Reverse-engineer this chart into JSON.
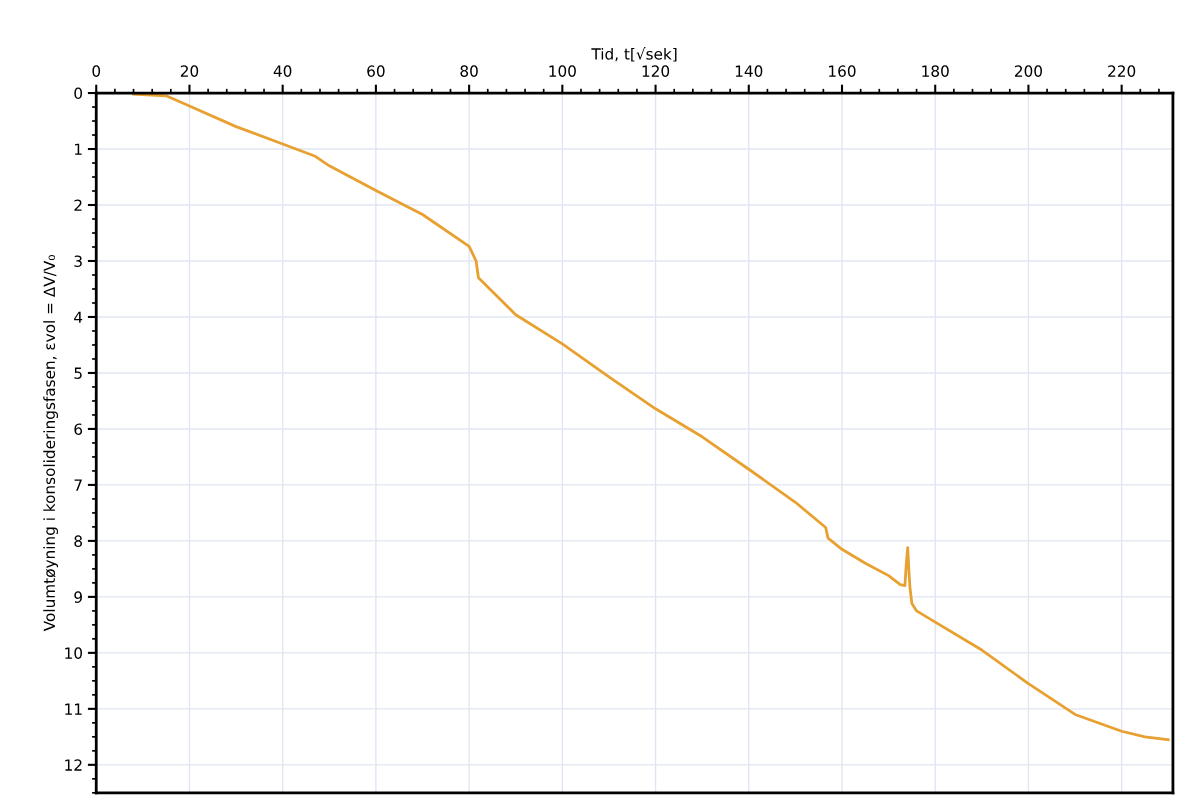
{
  "chart_data": {
    "type": "line",
    "xlabel": "Tid, t[√sek]",
    "ylabel": "Volumtøyning i konsolideringsfasen, εvol = ΔV/V₀",
    "x": [
      8,
      15,
      20,
      30,
      40,
      47,
      50,
      60,
      70,
      80,
      81.5,
      82,
      90,
      100,
      110,
      120,
      130,
      140,
      150,
      156.5,
      157,
      160,
      165,
      170,
      172.5,
      173.5,
      173.8,
      174.1,
      174.4,
      174.6,
      175,
      176,
      180,
      190,
      200,
      210,
      220,
      225,
      230
    ],
    "series": [
      {
        "color": "#e8a030",
        "values": [
          0.02,
          0.05,
          0.23,
          0.6,
          0.91,
          1.13,
          1.3,
          1.74,
          2.17,
          2.74,
          3.0,
          3.3,
          3.96,
          4.48,
          5.07,
          5.64,
          6.14,
          6.72,
          7.31,
          7.76,
          7.95,
          8.15,
          8.4,
          8.62,
          8.78,
          8.8,
          8.4,
          8.12,
          8.6,
          8.85,
          9.12,
          9.25,
          9.45,
          9.95,
          10.55,
          11.1,
          11.4,
          11.5,
          11.55
        ]
      }
    ],
    "xlim": [
      0,
      231
    ],
    "ylim": [
      12.5,
      0
    ],
    "xticks": [
      0,
      20,
      40,
      60,
      80,
      100,
      120,
      140,
      160,
      180,
      200,
      220
    ],
    "yticks": [
      0,
      1,
      2,
      3,
      4,
      5,
      6,
      7,
      8,
      9,
      10,
      11,
      12
    ],
    "grid": true,
    "legend": false,
    "marker": "none",
    "line_style": "solid"
  }
}
